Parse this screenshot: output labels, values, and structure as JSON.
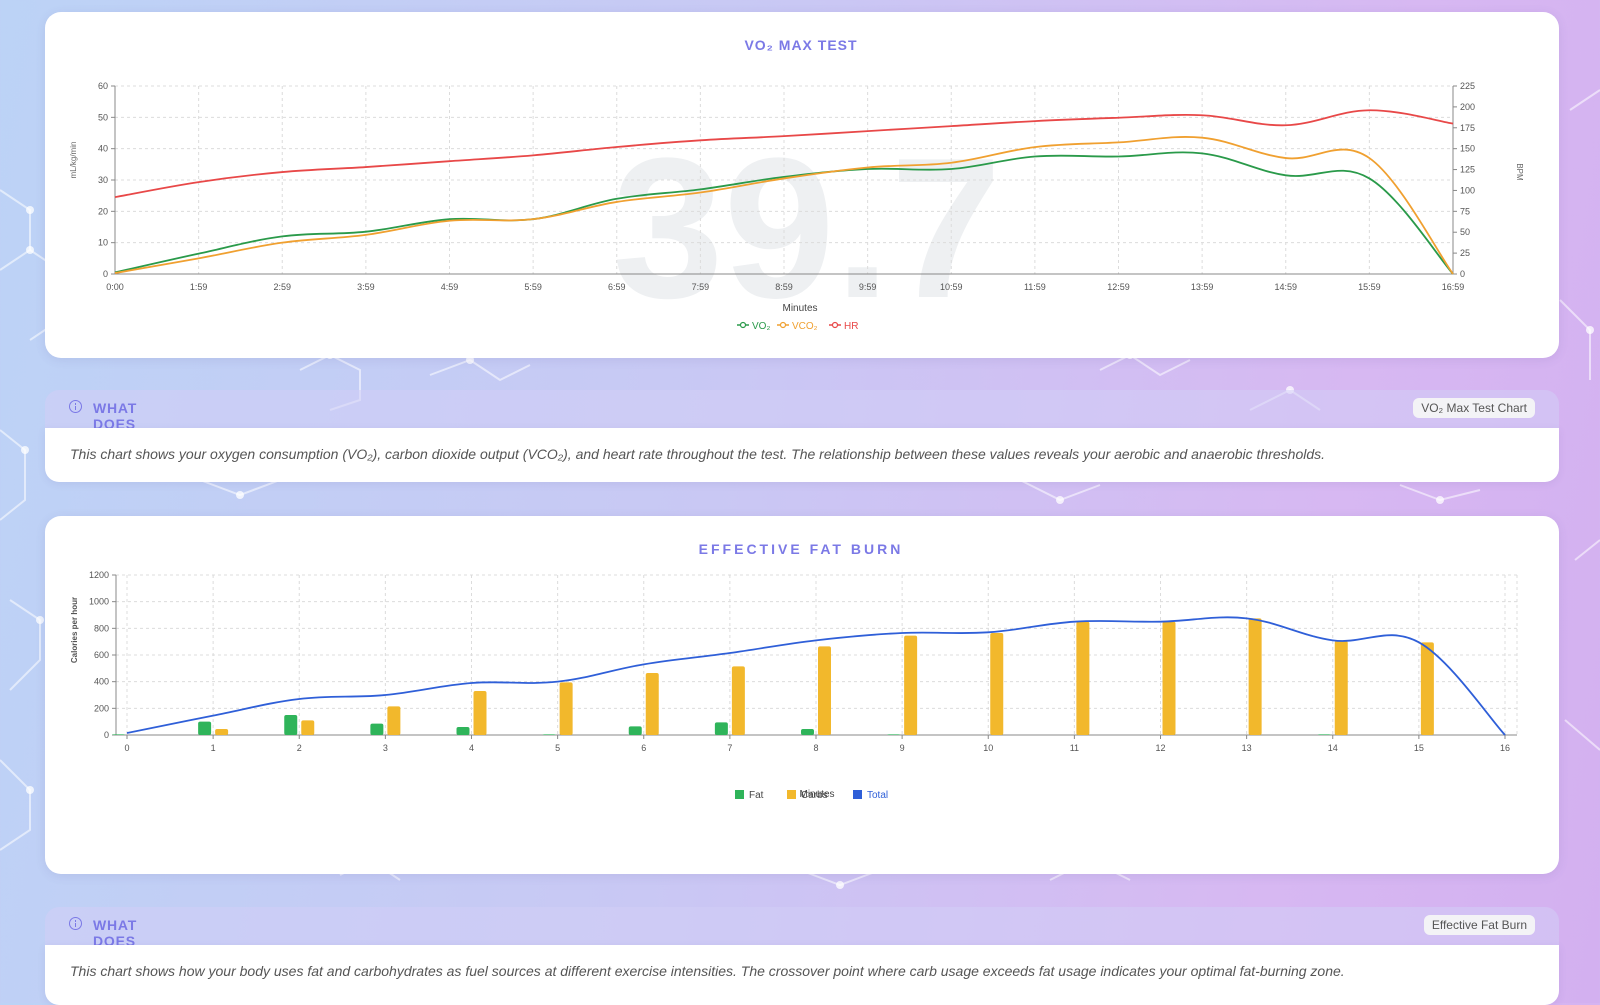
{
  "vo2_card": {
    "title": "VO₂ MAX TEST",
    "watermark": "39.7",
    "info_title": "WHAT DOES IT MEAN?",
    "info_badge": "VO₂ Max Test Chart",
    "info_text": "This chart shows your oxygen consumption (VO₂), carbon dioxide output (VCO₂), and heart rate throughout the test. The relationship between these values reveals your aerobic and anaerobic thresholds."
  },
  "fat_card": {
    "title": "EFFECTIVE FAT BURN",
    "info_title": "WHAT DOES IT MEAN?",
    "info_badge": "Effective Fat Burn",
    "info_text": "This chart shows how your body uses fat and carbohydrates as fuel sources at different exercise intensities. The crossover point where carb usage exceeds fat usage indicates your optimal fat-burning zone."
  },
  "colors": {
    "vo2": "#2a9a4a",
    "vco2": "#f0a030",
    "hr": "#e84848",
    "fat": "#2fb45a",
    "carbs": "#f2b82c",
    "total": "#2f5fd8",
    "accent": "#7b79e6"
  },
  "chart_data": [
    {
      "type": "line",
      "title": "VO₂ MAX TEST",
      "xlabel": "Minutes",
      "ylabel": "mL/kg/min",
      "y2label": "BPM",
      "x": [
        "0:00",
        "1:59",
        "2:59",
        "3:59",
        "4:59",
        "5:59",
        "6:59",
        "7:59",
        "8:59",
        "9:59",
        "10:59",
        "11:59",
        "12:59",
        "13:59",
        "14:59",
        "15:59",
        "16:59"
      ],
      "ylim": [
        0,
        60
      ],
      "yticks": [
        0,
        10,
        20,
        30,
        40,
        50,
        60
      ],
      "y2lim": [
        0,
        225
      ],
      "y2ticks": [
        0,
        25,
        50,
        75,
        100,
        125,
        150,
        175,
        200,
        225
      ],
      "grid": true,
      "legend": "bottom",
      "series": [
        {
          "name": "VO₂",
          "axis": "left",
          "values": [
            0.5,
            6.5,
            12,
            13.5,
            17.5,
            17.5,
            24,
            27,
            31,
            33.5,
            33.5,
            37.5,
            37.5,
            38.5,
            31.5,
            30.5,
            0
          ]
        },
        {
          "name": "VCO₂",
          "axis": "left",
          "values": [
            0.3,
            5,
            10,
            12.5,
            17,
            17.5,
            23,
            26,
            30.5,
            34,
            35.5,
            40.5,
            42,
            43.5,
            37,
            37,
            0
          ]
        },
        {
          "name": "HR",
          "axis": "right",
          "values": [
            92,
            110,
            122,
            128,
            135,
            142,
            152,
            160,
            165,
            171,
            177,
            183,
            187,
            190,
            178,
            196,
            180
          ]
        }
      ]
    },
    {
      "type": "bar",
      "title": "EFFECTIVE FAT BURN",
      "xlabel": "Minutes",
      "ylabel": "Calories per hour",
      "categories": [
        "0",
        "1",
        "2",
        "3",
        "4",
        "5",
        "6",
        "7",
        "8",
        "9",
        "10",
        "11",
        "12",
        "13",
        "14",
        "15",
        "16"
      ],
      "ylim": [
        0,
        1200
      ],
      "yticks": [
        0,
        200,
        400,
        600,
        800,
        1000,
        1200
      ],
      "grid": true,
      "legend": "bottom",
      "series": [
        {
          "name": "Fat",
          "type": "bar",
          "values": [
            5,
            100,
            150,
            85,
            60,
            5,
            65,
            95,
            45,
            5,
            0,
            0,
            0,
            0,
            5,
            0,
            0
          ]
        },
        {
          "name": "Carbs",
          "type": "bar",
          "values": [
            0,
            45,
            110,
            215,
            330,
            395,
            465,
            515,
            665,
            745,
            765,
            850,
            850,
            875,
            705,
            695,
            0
          ]
        },
        {
          "name": "Total",
          "type": "line",
          "values": [
            15,
            145,
            270,
            300,
            390,
            400,
            530,
            615,
            710,
            765,
            770,
            850,
            850,
            875,
            710,
            695,
            0
          ]
        }
      ]
    }
  ]
}
